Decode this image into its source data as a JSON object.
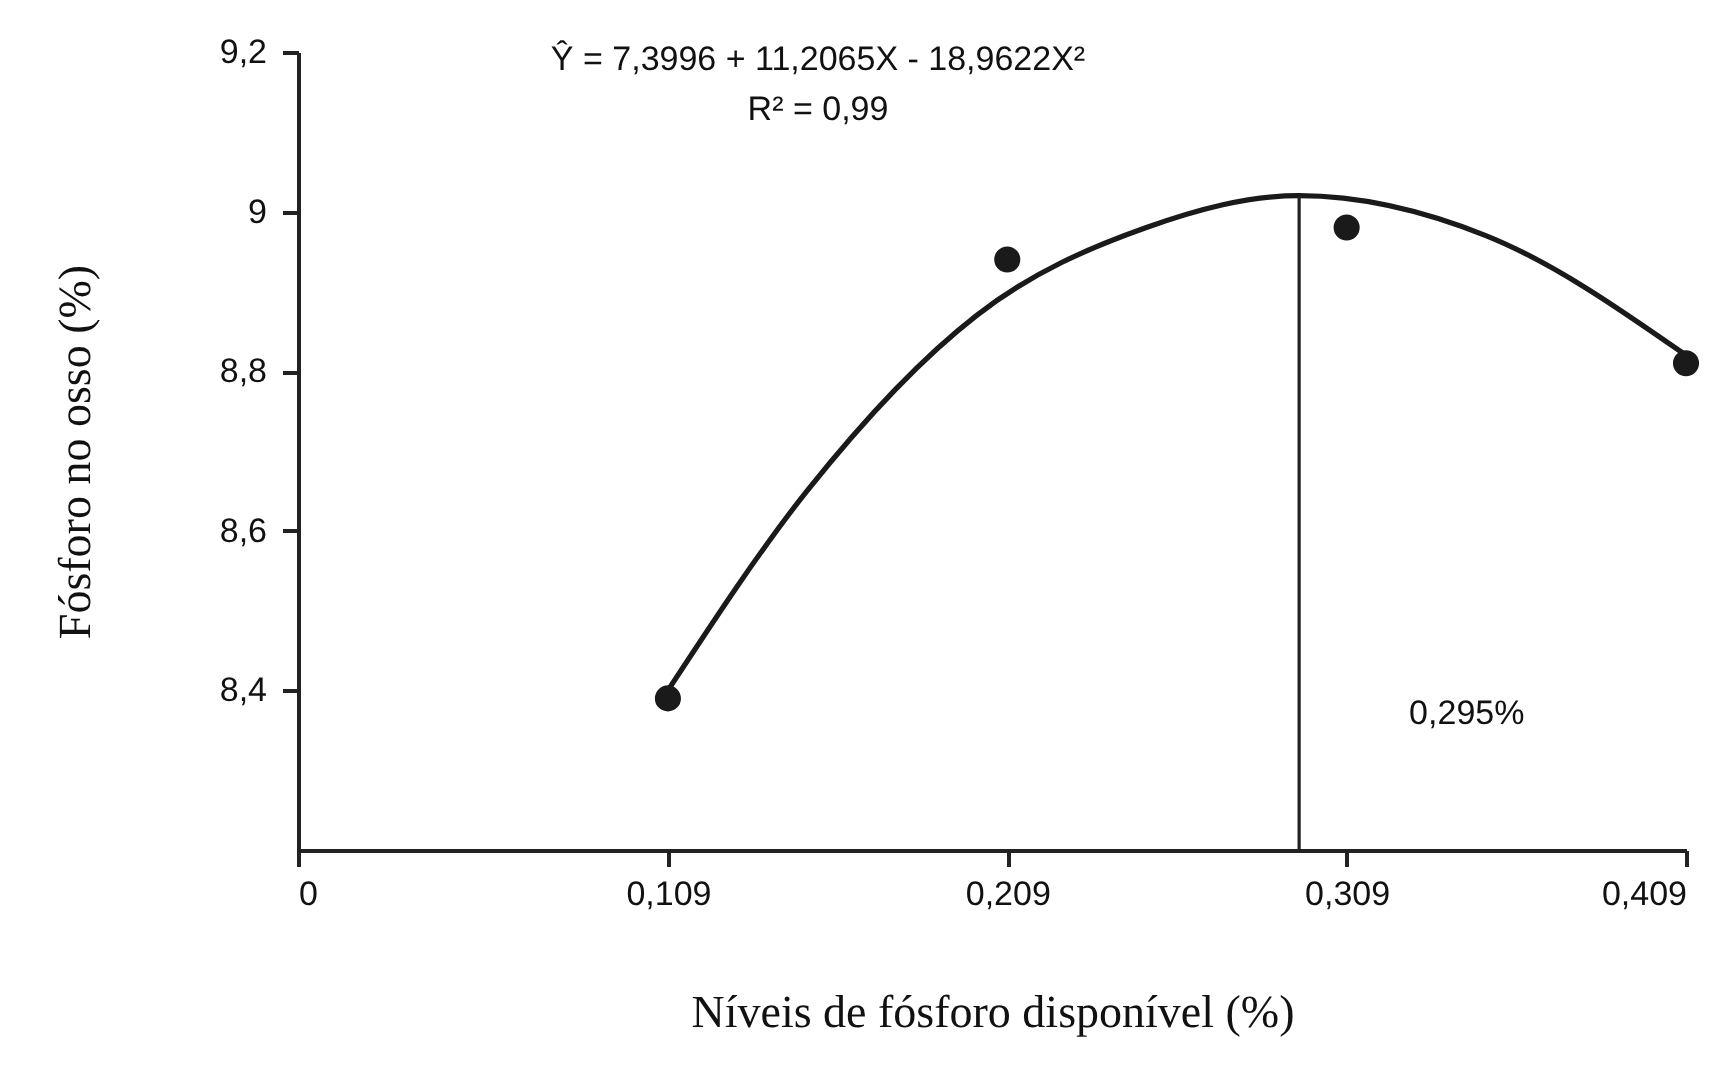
{
  "chart_data": {
    "type": "scatter",
    "xlabel": "Níveis de fósforo disponível (%)",
    "ylabel": "Fósforo no osso (%)",
    "annotations": [
      "Ŷ = 7,3996 + 11,2065X - 18,9622X²",
      "R² = 0,99"
    ],
    "xlim": [
      0,
      0.409
    ],
    "xticks": [
      0,
      {
        "value": 0.109,
        "label": "0,109"
      },
      {
        "value": 0.209,
        "label": "0,209"
      },
      {
        "value": 0.309,
        "label": "0,309"
      },
      {
        "value": 0.409,
        "label": "0,409"
      }
    ],
    "ylim": [
      8.2,
      9.2
    ],
    "yticks": [
      {
        "value": 8.4,
        "label": "8,4"
      },
      {
        "value": 8.6,
        "label": "8,6"
      },
      {
        "value": 8.8,
        "label": "8,8"
      },
      9,
      {
        "value": 9.2,
        "label": "9,2"
      }
    ],
    "ref_lines": [
      {
        "axis": "x",
        "value": 0.295,
        "label": "0,295%"
      }
    ],
    "series": [
      {
        "marker": "circle",
        "color": "#1a1a1a",
        "x": [
          0.109,
          0.209,
          0.309,
          0.409
        ],
        "values": [
          8.39,
          8.94,
          8.98,
          8.81
        ]
      },
      {
        "type": "line",
        "color": "#1a1a1a",
        "x": [
          0.109,
          0.15,
          0.2,
          0.25,
          0.295,
          0.35,
          0.409
        ],
        "values": [
          8.4,
          8.65,
          8.87,
          8.98,
          9.02,
          8.97,
          8.82
        ]
      }
    ]
  }
}
